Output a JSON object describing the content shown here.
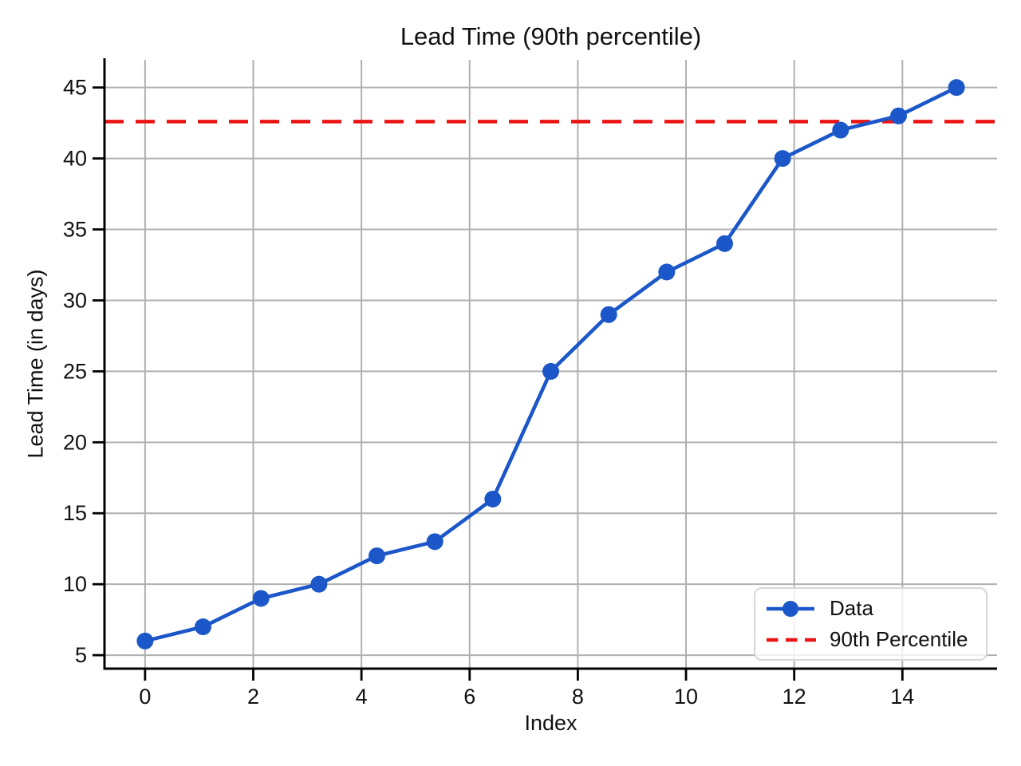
{
  "chart_data": {
    "type": "line",
    "title": "Lead Time (90th percentile)",
    "xlabel": "Index",
    "ylabel": "Lead Time (in days)",
    "x": [
      0,
      1.0714,
      2.1429,
      3.2143,
      4.2857,
      5.3571,
      6.4286,
      7.5,
      8.5714,
      9.6429,
      10.7143,
      11.7857,
      12.8571,
      13.9286,
      15
    ],
    "series": [
      {
        "name": "Data",
        "color": "#1b57c8",
        "marker": "circle",
        "values": [
          6,
          7,
          9,
          10,
          12,
          13,
          16,
          25,
          29,
          32,
          34,
          40,
          42,
          43,
          45
        ]
      }
    ],
    "reference_lines": [
      {
        "name": "90th Percentile",
        "value": 42.6,
        "color": "#ea1414",
        "style": "dashed"
      }
    ],
    "xlim": [
      -0.75,
      15.75
    ],
    "ylim": [
      4.05,
      46.95
    ],
    "xticks": [
      0,
      2,
      4,
      6,
      8,
      10,
      12,
      14
    ],
    "yticks": [
      5,
      10,
      15,
      20,
      25,
      30,
      35,
      40,
      45
    ],
    "grid": true,
    "legend_position": "lower right",
    "colors": {
      "grid": "#b0b0b0",
      "axis": "#000000",
      "text": "#111111",
      "background": "#ffffff"
    }
  }
}
